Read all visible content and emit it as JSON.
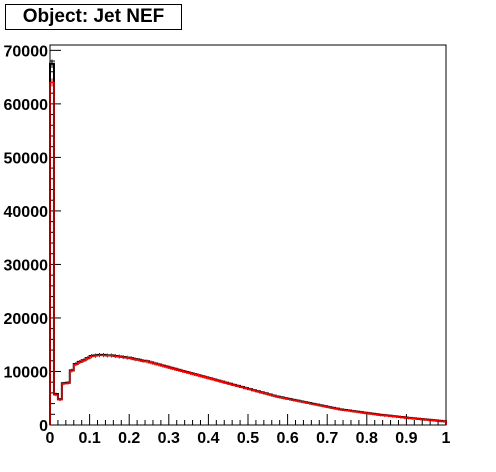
{
  "chart_data": {
    "type": "histogram",
    "title": "Object: Jet NEF",
    "xlim": [
      0,
      1
    ],
    "ylim": [
      0,
      71000
    ],
    "x_ticks": [
      0,
      0.1,
      0.2,
      0.3,
      0.4,
      0.5,
      0.6,
      0.7,
      0.8,
      0.9,
      1
    ],
    "x_tick_labels": [
      "0",
      "0.1",
      "0.2",
      "0.3",
      "0.4",
      "0.5",
      "0.6",
      "0.7",
      "0.8",
      "0.9",
      "1"
    ],
    "y_ticks": [
      0,
      10000,
      20000,
      30000,
      40000,
      50000,
      60000,
      70000
    ],
    "y_tick_labels": [
      "0",
      "10000",
      "20000",
      "30000",
      "40000",
      "50000",
      "60000",
      "70000"
    ],
    "bin_width": 0.01,
    "series": [
      {
        "color": "#000000",
        "style": "step",
        "values": [
          67500,
          5800,
          4800,
          7800,
          7900,
          10200,
          11400,
          11800,
          12100,
          12500,
          12900,
          13000,
          13100,
          13100,
          13000,
          13000,
          12900,
          12800,
          12700,
          12600,
          12500,
          12300,
          12200,
          12000,
          11900,
          11700,
          11500,
          11300,
          11100,
          10900,
          10700,
          10500,
          10300,
          10100,
          9900,
          9700,
          9500,
          9300,
          9100,
          8900,
          8700,
          8500,
          8300,
          8100,
          7900,
          7700,
          7500,
          7300,
          7100,
          6900,
          6700,
          6500,
          6300,
          6100,
          5900,
          5700,
          5500,
          5300,
          5150,
          5000,
          4850,
          4700,
          4550,
          4400,
          4250,
          4100,
          3950,
          3800,
          3650,
          3500,
          3350,
          3200,
          3050,
          2900,
          2800,
          2700,
          2600,
          2500,
          2400,
          2300,
          2200,
          2100,
          2000,
          1900,
          1820,
          1740,
          1660,
          1580,
          1500,
          1420,
          1340,
          1270,
          1200,
          1130,
          1060,
          990,
          920,
          850,
          780,
          700
        ]
      },
      {
        "color": "#ff0000",
        "style": "step",
        "values": [
          64000,
          5600,
          4700,
          7700,
          7800,
          10100,
          11300,
          11700,
          12000,
          12400,
          12800,
          12900,
          13000,
          13000,
          12950,
          12950,
          12850,
          12750,
          12650,
          12550,
          12450,
          12250,
          12150,
          11950,
          11850,
          11650,
          11450,
          11250,
          11050,
          10850,
          10650,
          10450,
          10250,
          10050,
          9850,
          9650,
          9450,
          9250,
          9050,
          8850,
          8650,
          8450,
          8250,
          8050,
          7850,
          7650,
          7450,
          7250,
          7050,
          6850,
          6650,
          6450,
          6250,
          6050,
          5850,
          5650,
          5450,
          5250,
          5100,
          4950,
          4800,
          4650,
          4500,
          4350,
          4200,
          4050,
          3900,
          3750,
          3600,
          3450,
          3300,
          3150,
          3000,
          2850,
          2750,
          2650,
          2550,
          2450,
          2350,
          2250,
          2150,
          2050,
          1950,
          1850,
          1780,
          1700,
          1620,
          1540,
          1460,
          1380,
          1310,
          1240,
          1170,
          1100,
          1030,
          960,
          890,
          820,
          750,
          680
        ]
      }
    ]
  }
}
